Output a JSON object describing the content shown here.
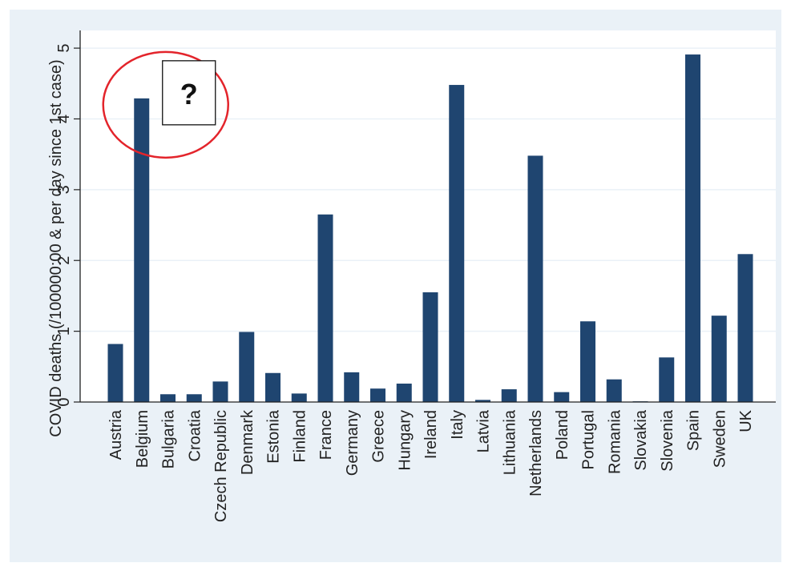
{
  "chart_data": {
    "type": "bar",
    "title": "",
    "xlabel": "",
    "ylabel": "COVID deaths (/100000:00 & per day since 1st case)",
    "ylim": [
      0,
      5.25
    ],
    "yticks": [
      "0",
      "1",
      "2",
      "3",
      "4",
      "5"
    ],
    "grid": true,
    "categories": [
      "Austria",
      "Belgium",
      "Bulgaria",
      "Croatia",
      "Czech Republic",
      "Denmark",
      "Estonia",
      "Finland",
      "France",
      "Germany",
      "Greece",
      "Hungary",
      "Ireland",
      "Italy",
      "Latvia",
      "Lithuania",
      "Netherlands",
      "Poland",
      "Portugal",
      "Romania",
      "Slovakia",
      "Slovenia",
      "Spain",
      "Sweden",
      "UK"
    ],
    "values": [
      0.82,
      4.29,
      0.11,
      0.11,
      0.29,
      0.99,
      0.41,
      0.12,
      2.65,
      0.42,
      0.19,
      0.26,
      1.55,
      4.48,
      0.03,
      0.18,
      3.48,
      0.14,
      1.14,
      0.32,
      0.01,
      0.63,
      4.91,
      1.22,
      2.09
    ],
    "bar_color": "#1f4570",
    "plot_background": "#ffffff",
    "outer_background": "#eaf1f7",
    "annotation": {
      "text": "?",
      "target": "Belgium",
      "circle_color": "#e3242b"
    }
  }
}
